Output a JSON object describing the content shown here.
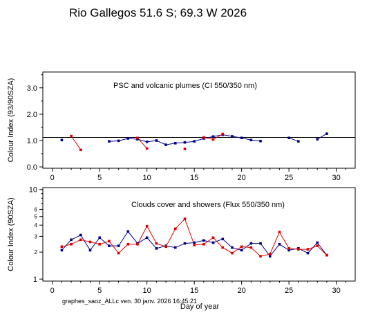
{
  "title": "Rio Gallegos  51.6 S; 69.3 W   2026",
  "footer": "graphes_saoz_ALLc  ven. 30 janv. 2026 16:45:21",
  "colors": {
    "series1": "#00008b",
    "series2": "#dd0000",
    "axis": "#000000"
  },
  "chart_data": [
    {
      "type": "scatter",
      "title": "PSC and volcanic plumes (CI 550/350 nm)",
      "xlabel": "",
      "ylabel": "Colour Index (93/90SZA)",
      "xlim": [
        -1,
        32
      ],
      "ylim": [
        -0.05,
        3.6
      ],
      "xticks": [
        0,
        5,
        10,
        15,
        20,
        25,
        30
      ],
      "yticks": [
        0.0,
        1.0,
        2.0,
        3.0
      ],
      "ytick_labels": [
        "0.0",
        "1.0",
        "2.0",
        "3.0"
      ],
      "reference_line": 1.12,
      "series": [
        {
          "values": [
            [
              1,
              1.02
            ],
            [
              6,
              0.97
            ],
            [
              7,
              0.99
            ],
            [
              8,
              1.08
            ],
            [
              9,
              1.05
            ],
            [
              10,
              0.95
            ],
            [
              11,
              1.0
            ],
            [
              12,
              0.84
            ],
            [
              13,
              0.9
            ],
            [
              14,
              0.93
            ],
            [
              15,
              0.97
            ],
            [
              16,
              1.08
            ],
            [
              17,
              1.15
            ],
            [
              18,
              1.22
            ],
            [
              19,
              1.16
            ],
            [
              20,
              1.1
            ],
            [
              21,
              1.02
            ],
            [
              22,
              0.98
            ],
            [
              25,
              1.1
            ],
            [
              26,
              0.97
            ],
            [
              28,
              1.05
            ],
            [
              29,
              1.26
            ]
          ],
          "segments": [
            [
              6,
              7,
              8,
              9,
              10,
              11,
              12,
              13,
              14,
              15,
              16,
              17,
              18,
              19,
              20,
              21,
              22
            ],
            [
              25,
              26
            ],
            [
              28,
              29
            ]
          ]
        },
        {
          "values": [
            [
              2,
              1.17
            ],
            [
              3,
              0.65
            ],
            [
              9,
              1.1
            ],
            [
              10,
              0.7
            ],
            [
              14,
              0.68
            ],
            [
              16,
              1.12
            ],
            [
              17,
              1.04
            ],
            [
              18,
              1.25
            ]
          ],
          "segments": [
            [
              2,
              3
            ],
            [
              9,
              10
            ],
            [
              16,
              17,
              18
            ]
          ]
        }
      ]
    },
    {
      "type": "line",
      "title": "Clouds cover and showers (Flux 550/350 nm)",
      "xlabel": "Day of year",
      "ylabel": "Colour Index (90SZA)",
      "xlim": [
        -1,
        32
      ],
      "ylim": [
        0.95,
        10.5
      ],
      "yscale": "log",
      "xticks": [
        0,
        5,
        10,
        15,
        20,
        25,
        30
      ],
      "yticks": [
        1,
        2,
        3,
        4,
        5,
        6,
        10
      ],
      "ytick_labels": [
        "1",
        "2",
        "3",
        "4",
        "5",
        "6",
        "10"
      ],
      "series": [
        {
          "values": [
            [
              1,
              2.1
            ],
            [
              2,
              2.75
            ],
            [
              3,
              3.1
            ],
            [
              4,
              2.1
            ],
            [
              5,
              2.9
            ],
            [
              6,
              2.35
            ],
            [
              7,
              2.35
            ],
            [
              8,
              3.4
            ],
            [
              9,
              2.5
            ],
            [
              10,
              2.9
            ],
            [
              11,
              2.2
            ],
            [
              12,
              2.35
            ],
            [
              13,
              2.25
            ],
            [
              14,
              2.5
            ],
            [
              15,
              2.55
            ],
            [
              16,
              2.7
            ],
            [
              17,
              2.55
            ],
            [
              18,
              2.8
            ],
            [
              19,
              2.25
            ],
            [
              20,
              2.1
            ],
            [
              21,
              2.5
            ],
            [
              22,
              2.5
            ],
            [
              23,
              1.8
            ],
            [
              24,
              2.45
            ],
            [
              25,
              2.1
            ],
            [
              26,
              2.2
            ],
            [
              27,
              1.95
            ],
            [
              28,
              2.55
            ],
            [
              29,
              1.85
            ]
          ]
        },
        {
          "values": [
            [
              1,
              2.3
            ],
            [
              2,
              2.45
            ],
            [
              3,
              2.75
            ],
            [
              4,
              2.6
            ],
            [
              5,
              2.45
            ],
            [
              6,
              2.65
            ],
            [
              7,
              1.95
            ],
            [
              8,
              2.45
            ],
            [
              9,
              2.45
            ],
            [
              10,
              3.9
            ],
            [
              11,
              2.5
            ],
            [
              12,
              2.3
            ],
            [
              13,
              3.65
            ],
            [
              14,
              4.7
            ],
            [
              15,
              2.4
            ],
            [
              16,
              2.45
            ],
            [
              17,
              2.9
            ],
            [
              18,
              2.25
            ],
            [
              19,
              1.95
            ],
            [
              20,
              2.3
            ],
            [
              21,
              2.25
            ],
            [
              22,
              1.8
            ],
            [
              23,
              1.9
            ],
            [
              24,
              3.35
            ],
            [
              25,
              2.2
            ],
            [
              26,
              2.15
            ],
            [
              27,
              2.15
            ],
            [
              28,
              2.35
            ],
            [
              29,
              1.85
            ]
          ]
        }
      ]
    }
  ]
}
